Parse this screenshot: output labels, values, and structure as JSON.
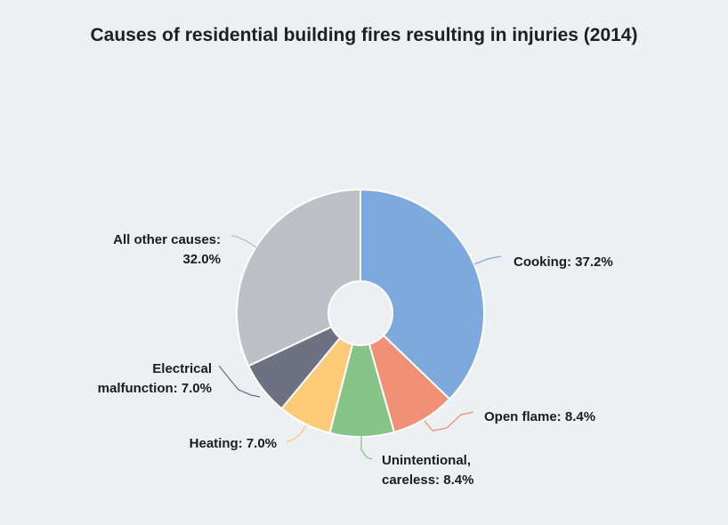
{
  "chart_data": {
    "type": "pie",
    "title": "Causes of residential building fires resulting in injuries (2014)",
    "donut": true,
    "slices": [
      {
        "label": "Cooking",
        "display": [
          "Cooking: 37.2%"
        ],
        "value": 37.2,
        "color": "#7ea9de"
      },
      {
        "label": "Open flame",
        "display": [
          "Open flame: 8.4%"
        ],
        "value": 8.4,
        "color": "#f09177"
      },
      {
        "label": "Unintentional, careless",
        "display": [
          "Unintentional,",
          "careless: 8.4%"
        ],
        "value": 8.4,
        "color": "#86c587"
      },
      {
        "label": "Heating",
        "display": [
          "Heating: 7.0%"
        ],
        "value": 7.0,
        "color": "#fdca78"
      },
      {
        "label": "Electrical malfunction",
        "display": [
          "Electrical",
          "malfunction: 7.0%"
        ],
        "value": 7.0,
        "color": "#6d7181"
      },
      {
        "label": "All other causes",
        "display": [
          "All other causes:",
          "32.0%"
        ],
        "value": 32.0,
        "color": "#bdc0c5"
      }
    ]
  }
}
